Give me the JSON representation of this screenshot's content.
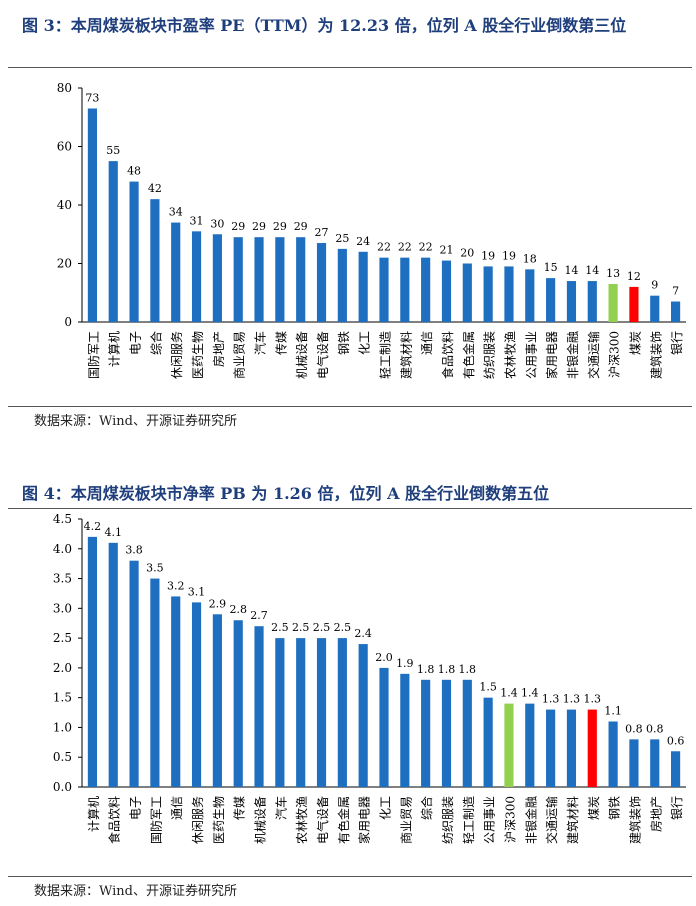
{
  "figures": [
    {
      "title": "图 3：本周煤炭板块市盈率 PE（TTM）为 12.23 倍，位列 A 股全行业倒数第三位",
      "source": "数据来源：Wind、开源证券研究所"
    },
    {
      "title": "图 4：本周煤炭板块市净率 PB 为 1.26 倍，位列 A 股全行业倒数第五位",
      "source": "数据来源：Wind、开源证券研究所"
    }
  ],
  "colors": {
    "bar": "#1f6fc0",
    "hs300": "#92d050",
    "coal": "#ff0000",
    "title": "#1f3e7c"
  },
  "chart_data": [
    {
      "type": "bar",
      "title": "图 3：本周煤炭板块市盈率 PE（TTM）为 12.23 倍，位列 A 股全行业倒数第三位",
      "categories": [
        "国防军工",
        "计算机",
        "电子",
        "综合",
        "休闲服务",
        "医药生物",
        "房地产",
        "商业贸易",
        "汽车",
        "传媒",
        "机械设备",
        "电气设备",
        "钢铁",
        "化工",
        "轻工制造",
        "建筑材料",
        "通信",
        "食品饮料",
        "有色金属",
        "纺织服装",
        "农林牧渔",
        "公用事业",
        "家用电器",
        "非银金融",
        "交通运输",
        "沪深300",
        "煤炭",
        "建筑装饰",
        "银行"
      ],
      "values": [
        73,
        55,
        48,
        42,
        34,
        31,
        30,
        29,
        29,
        29,
        29,
        27,
        25,
        24,
        22,
        22,
        22,
        21,
        20,
        19,
        19,
        18,
        15,
        14,
        14,
        13,
        12,
        9,
        7
      ],
      "labels": [
        "73",
        "55",
        "48",
        "42",
        "34",
        "31",
        "30",
        "29",
        "29",
        "29",
        "29",
        "27",
        "25",
        "24",
        "22",
        "22",
        "22",
        "21",
        "20",
        "19",
        "19",
        "18",
        "15",
        "14",
        "14",
        "13",
        "12",
        "9",
        "7"
      ],
      "highlight": {
        "沪深300": "hs300",
        "煤炭": "coal"
      },
      "ylim": [
        0,
        80
      ],
      "yticks": [
        "0",
        "20",
        "40",
        "60",
        "80"
      ],
      "ytick_values": [
        0,
        20,
        40,
        60,
        80
      ],
      "grid": false,
      "xlabel": "",
      "ylabel": ""
    },
    {
      "type": "bar",
      "title": "图 4：本周煤炭板块市净率 PB 为 1.26 倍，位列 A 股全行业倒数第五位",
      "categories": [
        "计算机",
        "食品饮料",
        "电子",
        "国防军工",
        "通信",
        "休闲服务",
        "医药生物",
        "传媒",
        "机械设备",
        "汽车",
        "农林牧渔",
        "电气设备",
        "有色金属",
        "家用电器",
        "化工",
        "商业贸易",
        "综合",
        "纺织服装",
        "轻工制造",
        "公用事业",
        "沪深300",
        "非银金融",
        "交通运输",
        "建筑材料",
        "煤炭",
        "钢铁",
        "建筑装饰",
        "房地产",
        "银行"
      ],
      "values": [
        4.2,
        4.1,
        3.8,
        3.5,
        3.2,
        3.1,
        2.9,
        2.8,
        2.7,
        2.5,
        2.5,
        2.5,
        2.5,
        2.4,
        2.0,
        1.9,
        1.8,
        1.8,
        1.8,
        1.5,
        1.4,
        1.4,
        1.3,
        1.3,
        1.3,
        1.1,
        0.8,
        0.8,
        0.6
      ],
      "labels": [
        "4.2",
        "4.1",
        "3.8",
        "3.5",
        "3.2",
        "3.1",
        "2.9",
        "2.8",
        "2.7",
        "2.5",
        "2.5",
        "2.5",
        "2.5",
        "2.4",
        "2.0",
        "1.9",
        "1.8",
        "1.8",
        "1.8",
        "1.5",
        "1.4",
        "1.4",
        "1.3",
        "1.3",
        "1.3",
        "1.1",
        "0.8",
        "0.8",
        "0.6"
      ],
      "highlight": {
        "沪深300": "hs300",
        "煤炭": "coal"
      },
      "ylim": [
        0,
        4.5
      ],
      "yticks": [
        "0.0",
        "0.5",
        "1.0",
        "1.5",
        "2.0",
        "2.5",
        "3.0",
        "3.5",
        "4.0",
        "4.5"
      ],
      "ytick_values": [
        0,
        0.5,
        1.0,
        1.5,
        2.0,
        2.5,
        3.0,
        3.5,
        4.0,
        4.5
      ],
      "grid": false,
      "xlabel": "",
      "ylabel": ""
    }
  ]
}
